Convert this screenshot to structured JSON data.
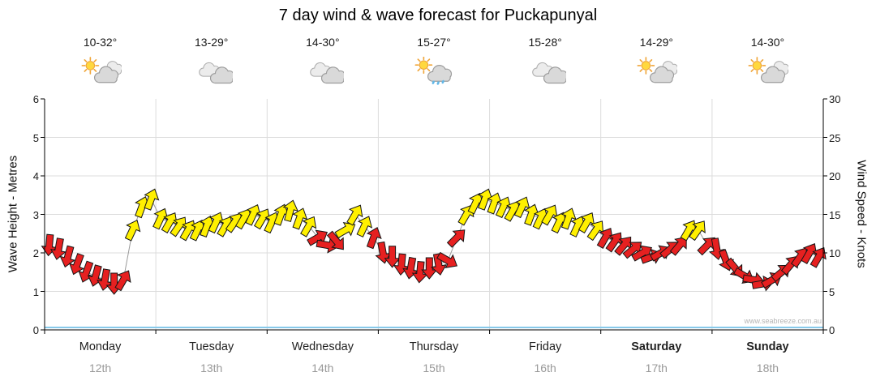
{
  "title": "7 day wind & wave forecast for Puckapunyal",
  "watermark": "www.seabreeze.com.au",
  "days": [
    {
      "name": "Monday",
      "date": "12th",
      "temp": "10-32°",
      "icon": "sun-cloud",
      "weekend": false
    },
    {
      "name": "Tuesday",
      "date": "13th",
      "temp": "13-29°",
      "icon": "clouds",
      "weekend": false
    },
    {
      "name": "Wednesday",
      "date": "14th",
      "temp": "14-30°",
      "icon": "clouds",
      "weekend": false
    },
    {
      "name": "Thursday",
      "date": "15th",
      "temp": "15-27°",
      "icon": "sun-cloud-rain",
      "weekend": false
    },
    {
      "name": "Friday",
      "date": "16th",
      "temp": "15-28°",
      "icon": "clouds",
      "weekend": false
    },
    {
      "name": "Saturday",
      "date": "17th",
      "temp": "14-29°",
      "icon": "sun-cloud",
      "weekend": true
    },
    {
      "name": "Sunday",
      "date": "18th",
      "temp": "14-30°",
      "icon": "sun-cloud",
      "weekend": true
    }
  ],
  "chart_data": {
    "type": "wind-arrows",
    "description": "Wind speed/direction arrows, red = lighter winds, yellow = stronger winds; gray line connects points",
    "points_per_day": 12,
    "left_axis": {
      "label": "Wave Height - Metres",
      "min": 0,
      "max": 6,
      "ticks": [
        0,
        1,
        2,
        3,
        4,
        5,
        6
      ]
    },
    "right_axis": {
      "label": "Wind Speed - Knots",
      "min": 0,
      "max": 30,
      "ticks": [
        0,
        5,
        10,
        15,
        20,
        25,
        30
      ]
    },
    "scale_note": "1 metre on left axis = 5 knots on right axis",
    "colors": {
      "red": "#e62020",
      "yellow": "#fff000",
      "arrow_outline": "#151515",
      "connector_line": "#999999",
      "waterline_blue": "#86c9ea",
      "yellow_min_knots": 12.5
    },
    "knots": [
      11,
      10.5,
      9.5,
      8.5,
      7.5,
      7,
      6.5,
      6,
      6.5,
      13,
      16,
      17,
      14.5,
      14,
      13.5,
      13,
      13,
      13.5,
      14,
      13.5,
      14,
      14.5,
      15,
      14.5,
      14,
      15,
      15.5,
      14.5,
      13.5,
      12,
      11,
      11.5,
      13,
      15,
      13.5,
      12,
      10,
      9.5,
      8.5,
      8,
      7.5,
      8,
      8.5,
      9,
      12,
      15,
      16.5,
      17,
      16.5,
      16,
      15.5,
      16,
      15,
      14.5,
      15,
      14,
      14.5,
      13.5,
      14,
      13,
      12,
      11.5,
      11,
      10.5,
      10,
      9.5,
      10,
      10.5,
      11,
      13,
      13,
      11,
      10.5,
      9,
      8,
      7,
      6.5,
      6,
      6.5,
      7.5,
      8.5,
      9.5,
      10,
      9.5
    ],
    "directions_deg": [
      185,
      190,
      195,
      200,
      200,
      195,
      190,
      180,
      30,
      25,
      20,
      20,
      25,
      30,
      35,
      30,
      25,
      20,
      25,
      30,
      35,
      30,
      25,
      30,
      25,
      20,
      15,
      20,
      30,
      60,
      100,
      140,
      60,
      30,
      25,
      20,
      170,
      180,
      185,
      190,
      185,
      180,
      170,
      120,
      45,
      30,
      25,
      20,
      20,
      25,
      30,
      25,
      20,
      25,
      30,
      25,
      20,
      25,
      30,
      35,
      30,
      35,
      40,
      50,
      60,
      70,
      60,
      50,
      40,
      30,
      35,
      45,
      170,
      160,
      140,
      120,
      100,
      80,
      60,
      50,
      40,
      35,
      30,
      30
    ]
  }
}
